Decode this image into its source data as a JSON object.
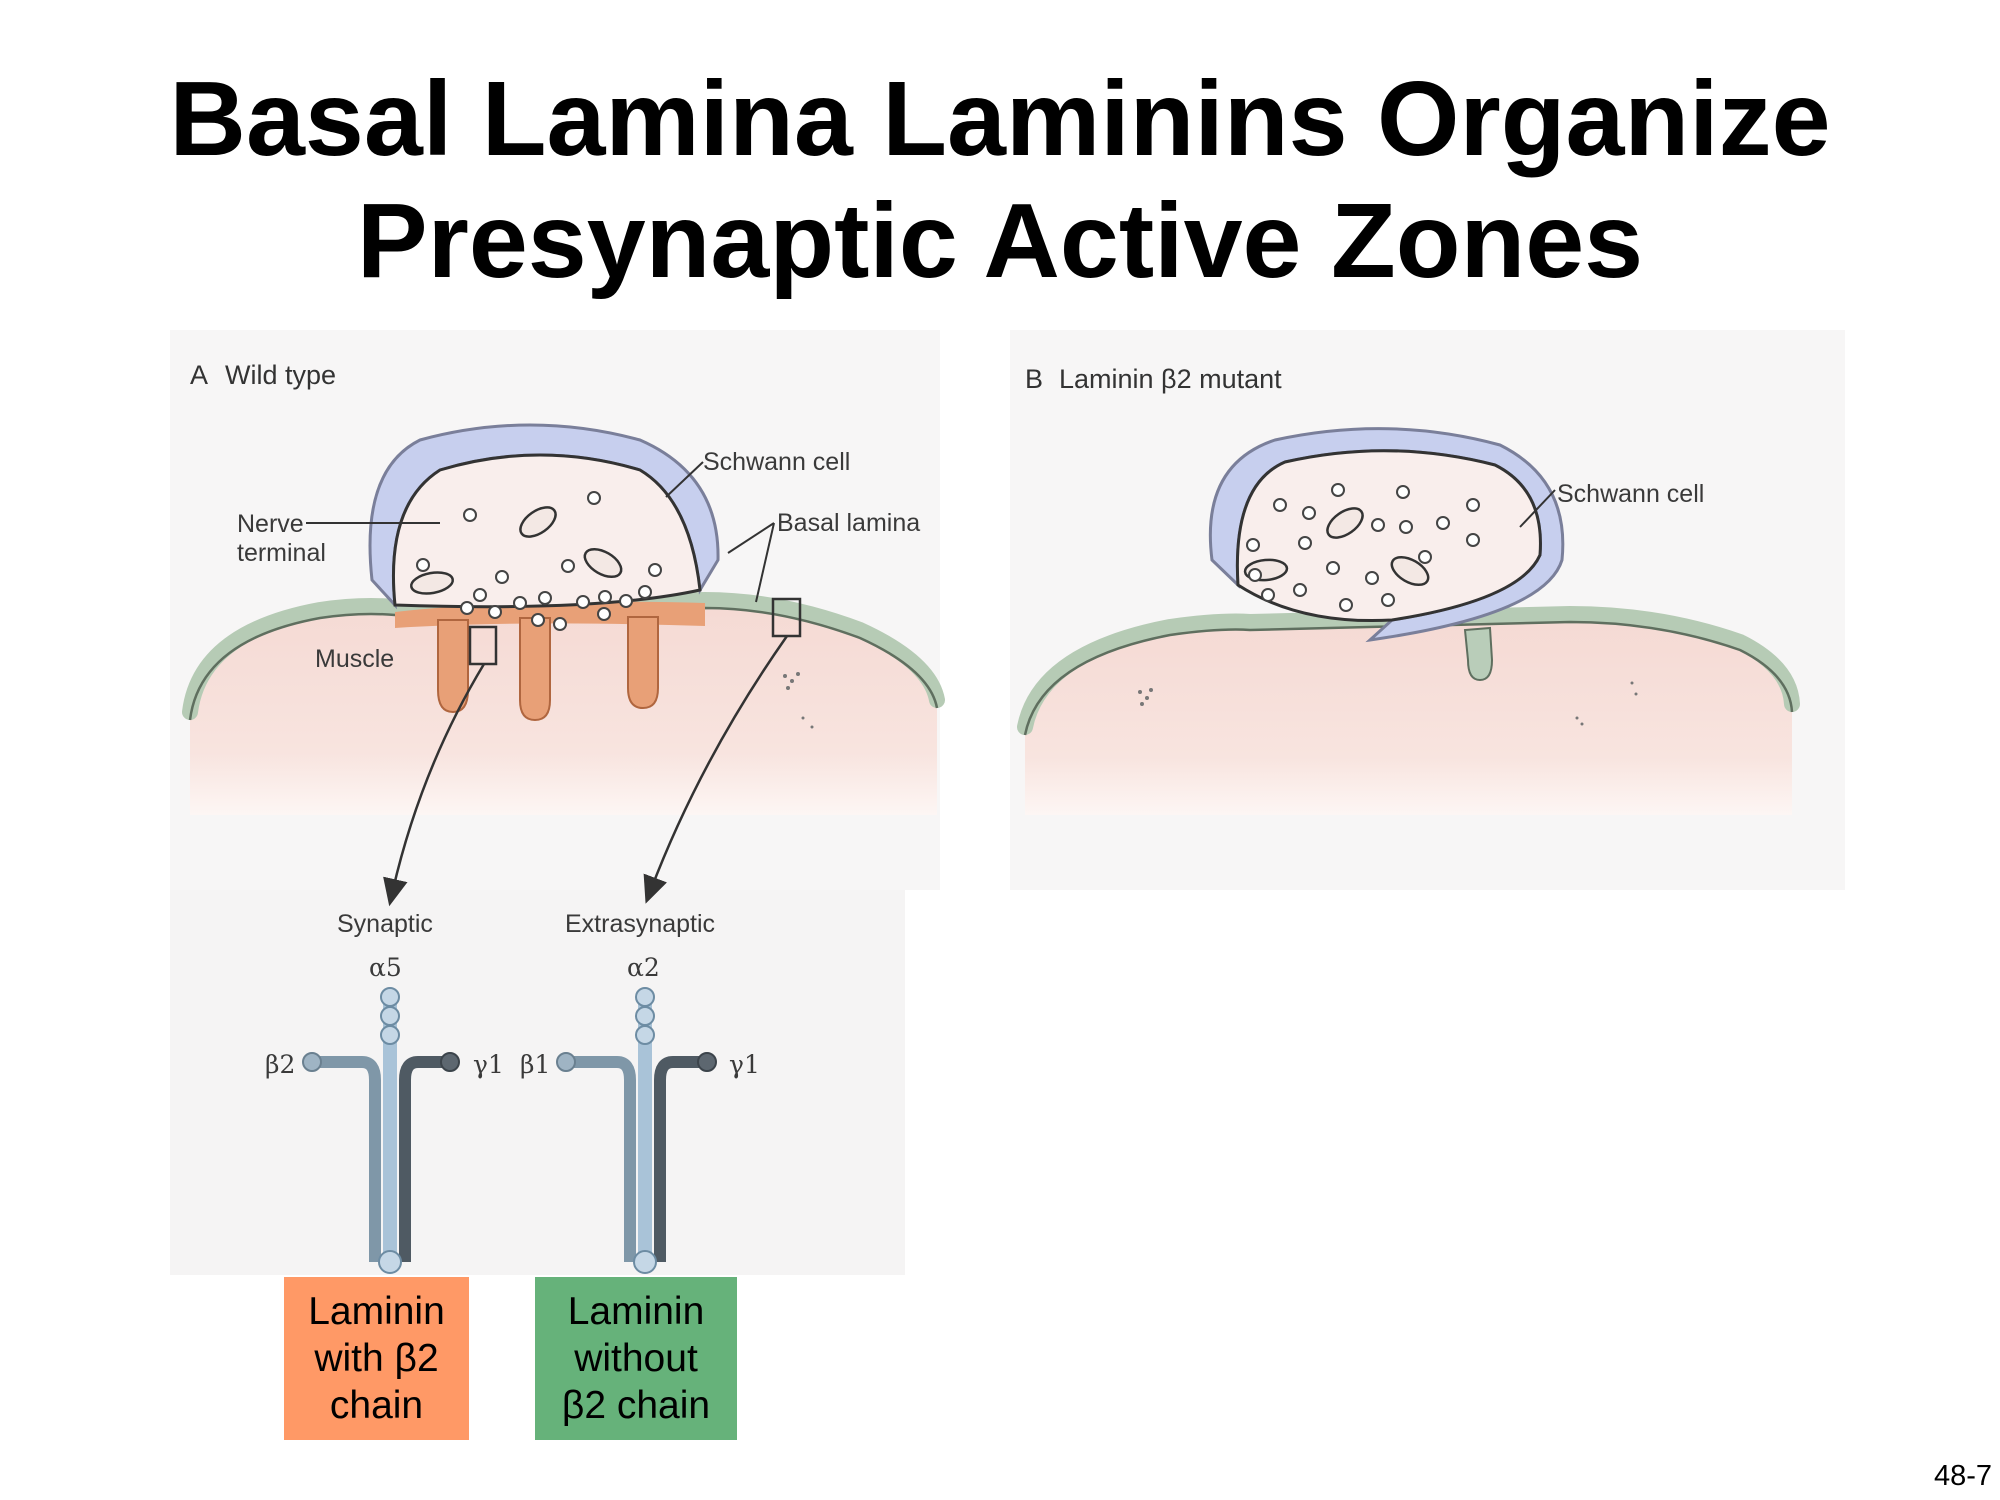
{
  "title": {
    "line1": "Basal Lamina Laminins Organize",
    "line2": "Presynaptic Active Zones"
  },
  "panel_a": {
    "letter": "A",
    "title": "Wild type",
    "labels": {
      "schwann_cell": "Schwann cell",
      "basal_lamina": "Basal lamina",
      "nerve_line1": "Nerve",
      "nerve_line2": "terminal",
      "muscle": "Muscle"
    }
  },
  "panel_b": {
    "letter": "B",
    "title": "Laminin β2 mutant",
    "labels": {
      "schwann_cell": "Schwann cell"
    }
  },
  "laminins": {
    "synaptic": {
      "label": "Synaptic",
      "alpha": "α5",
      "beta": "β2",
      "gamma": "γ1"
    },
    "extrasynaptic": {
      "label": "Extrasynaptic",
      "alpha": "α2",
      "beta": "β1",
      "gamma": "γ1"
    }
  },
  "legend": {
    "with_beta2": {
      "line1": "Laminin",
      "line2": "with β2",
      "line3": "chain",
      "color": "#ff9966"
    },
    "without_beta2": {
      "line1": "Laminin",
      "line2": "without",
      "line3": "β2 chain",
      "color": "#66b27a"
    }
  },
  "colors": {
    "muscle": "#f6dcd6",
    "basal_lamina": "#b9cdb9",
    "synaptic_lamina": "#e8a077",
    "schwann_cell": "#c7cfee",
    "nerve_terminal": "#f9eeec"
  },
  "slide_number": "48-7"
}
